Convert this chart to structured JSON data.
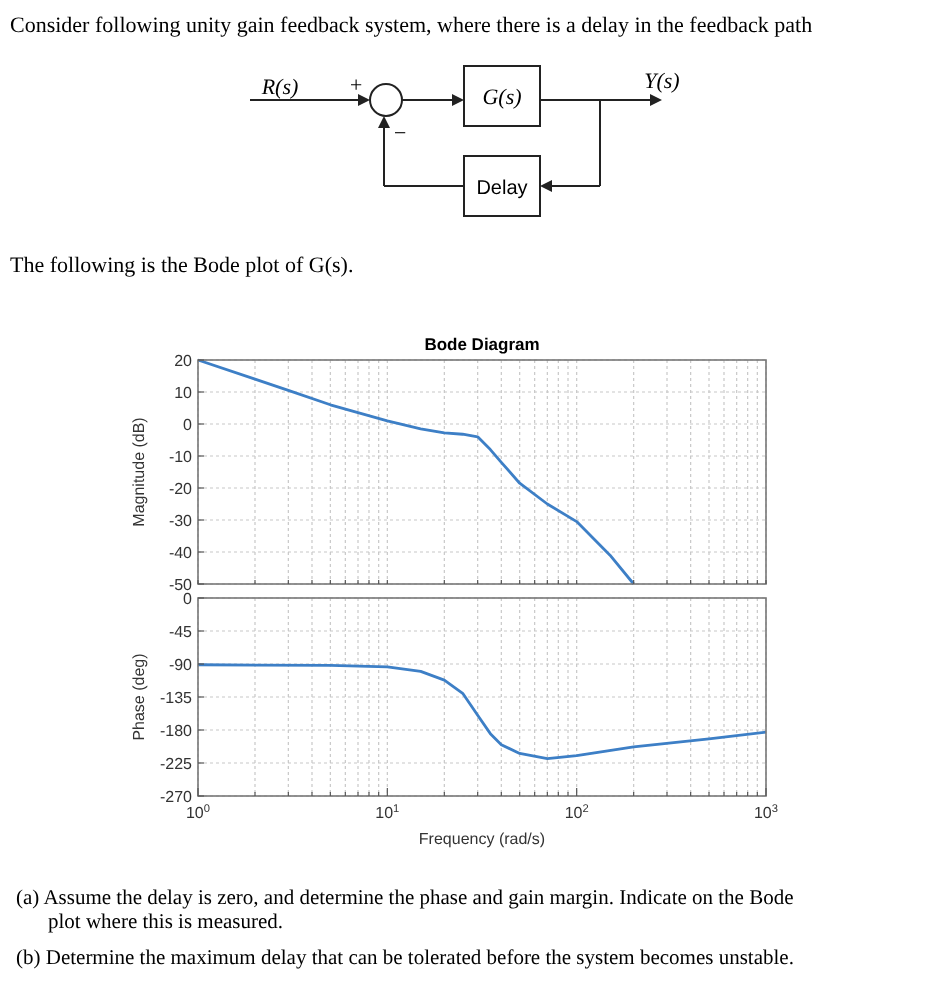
{
  "chart_data": [
    {
      "type": "other",
      "title": "Consider following unity gain feedback system, where there is a delay in the feedback path",
      "subtitle": "The following is the Bode plot of G(s).",
      "annotations": [
        "R(s)",
        "+",
        "−",
        "G(s)",
        "Y(s)",
        "Delay"
      ]
    },
    {
      "type": "line",
      "title": "Bode Diagram",
      "ylabel": "Magnitude (dB)",
      "tick_labels": "y",
      "grid": true,
      "xlim": [
        1,
        1000
      ],
      "ylim": [
        -50,
        20
      ],
      "log": "x",
      "xticks": [
        {
          "value": 1,
          "label": null
        },
        {
          "value": 2,
          "label": null
        },
        {
          "value": 3,
          "label": null
        },
        {
          "value": 4,
          "label": null
        },
        {
          "value": 5,
          "label": null
        },
        {
          "value": 6,
          "label": null
        },
        {
          "value": 7,
          "label": null
        },
        {
          "value": 8,
          "label": null
        },
        {
          "value": 9,
          "label": null
        },
        {
          "value": 10,
          "label": null
        },
        {
          "value": 20,
          "label": null
        },
        {
          "value": 30,
          "label": null
        },
        {
          "value": 40,
          "label": null
        },
        {
          "value": 50,
          "label": null
        },
        {
          "value": 60,
          "label": null
        },
        {
          "value": 70,
          "label": null
        },
        {
          "value": 80,
          "label": null
        },
        {
          "value": 90,
          "label": null
        },
        {
          "value": 100,
          "label": null
        },
        {
          "value": 200,
          "label": null
        },
        {
          "value": 300,
          "label": null
        },
        {
          "value": 400,
          "label": null
        },
        {
          "value": 500,
          "label": null
        },
        {
          "value": 600,
          "label": null
        },
        {
          "value": 700,
          "label": null
        },
        {
          "value": 800,
          "label": null
        },
        {
          "value": 900,
          "label": null
        },
        {
          "value": 1000,
          "label": null
        }
      ],
      "yticks": [
        -50,
        -40,
        -30,
        -20,
        -10,
        0,
        10,
        20
      ],
      "series": [
        {
          "color": "#3d7fc6",
          "x": [
            1,
            2,
            3,
            5,
            10,
            15,
            20,
            25,
            30,
            35,
            40,
            50,
            70,
            100,
            150,
            200
          ],
          "values": [
            20,
            14,
            10.5,
            6,
            1,
            -1.5,
            -2.8,
            -3.2,
            -4,
            -8,
            -12,
            -18.5,
            -25,
            -30.5,
            -41,
            -50
          ]
        }
      ]
    },
    {
      "type": "line",
      "xlabel": "Frequency  (rad/s)",
      "ylabel": "Phase (deg)",
      "grid": true,
      "xlim": [
        1,
        1000
      ],
      "ylim": [
        -270,
        0
      ],
      "log": "x",
      "xticks": [
        {
          "value": 1,
          "label": "10$^{0}$"
        },
        {
          "value": 2,
          "label": null
        },
        {
          "value": 3,
          "label": null
        },
        {
          "value": 4,
          "label": null
        },
        {
          "value": 5,
          "label": null
        },
        {
          "value": 6,
          "label": null
        },
        {
          "value": 7,
          "label": null
        },
        {
          "value": 8,
          "label": null
        },
        {
          "value": 9,
          "label": null
        },
        {
          "value": 10,
          "label": "10$^{1}$"
        },
        {
          "value": 20,
          "label": null
        },
        {
          "value": 30,
          "label": null
        },
        {
          "value": 40,
          "label": null
        },
        {
          "value": 50,
          "label": null
        },
        {
          "value": 60,
          "label": null
        },
        {
          "value": 70,
          "label": null
        },
        {
          "value": 80,
          "label": null
        },
        {
          "value": 90,
          "label": null
        },
        {
          "value": 100,
          "label": "10$^{2}$"
        },
        {
          "value": 200,
          "label": null
        },
        {
          "value": 300,
          "label": null
        },
        {
          "value": 400,
          "label": null
        },
        {
          "value": 500,
          "label": null
        },
        {
          "value": 600,
          "label": null
        },
        {
          "value": 700,
          "label": null
        },
        {
          "value": 800,
          "label": null
        },
        {
          "value": 900,
          "label": null
        },
        {
          "value": 1000,
          "label": "10$^{3}$"
        }
      ],
      "yticks": [
        -270,
        -225,
        -180,
        -135,
        -90,
        -45,
        0
      ],
      "series": [
        {
          "color": "#3d7fc6",
          "x": [
            1,
            5,
            10,
            15,
            20,
            25,
            30,
            35,
            40,
            50,
            70,
            100,
            200,
            500,
            1000
          ],
          "values": [
            -91,
            -92,
            -94,
            -100,
            -112,
            -130,
            -160,
            -185,
            -200,
            -212,
            -219,
            -215,
            -203,
            -192,
            -183
          ]
        }
      ],
      "annotations": [
        "(a) Assume the delay is zero, and determine the phase and gain margin. Indicate on the Bode plot where this is measured.",
        "(b) Determine the maximum delay that can be tolerated before the system becomes unstable."
      ]
    }
  ]
}
